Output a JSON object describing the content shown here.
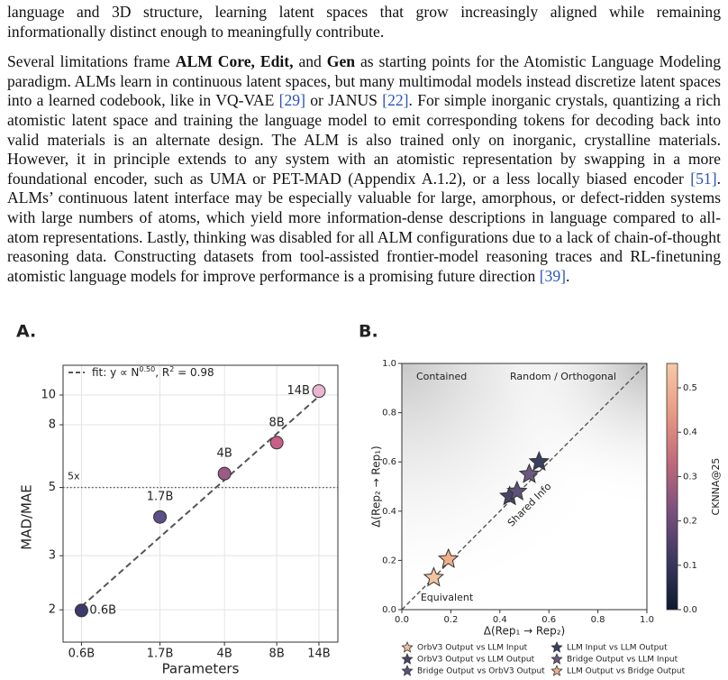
{
  "paragraphs": [
    [
      "language and 3D structure, learning latent spaces that grow increasingly aligned while remaining informationally distinct enough to meaningfully contribute."
    ],
    [
      "Several limitations frame ",
      "ALM Core, Edit,",
      " and ",
      "Gen",
      " as starting points for the Atomistic Language Modeling paradigm. ALMs learn in continuous latent spaces, but many multimodal models instead discretize latent spaces into a learned codebook, like in VQ-VAE ",
      "[29]",
      " or JANUS ",
      "[22]",
      ". For simple inorganic crystals, quantizing a rich atomistic latent space and training the language model to emit corresponding tokens for decoding back into valid materials is an alternate design. The ALM is also trained only on inorganic, crystalline materials. However, it in principle extends to any system with an atomistic representation by swapping in a more foundational encoder, such as UMA or PET-MAD (Appendix A.1.2), or a less locally biased encoder ",
      "[51]",
      ". ALMs’ continuous latent interface may be especially valuable for large, amorphous, or defect-ridden systems with large numbers of atoms, which yield more information-dense descriptions in language compared to all-atom representations. Lastly, thinking was disabled for all ALM configurations due to a lack of chain-of-thought reasoning data. Constructing datasets from tool-assisted frontier-model reasoning traces and RL-finetuning atomistic language models for improve performance is a promising future direction ",
      "[39]",
      "."
    ]
  ],
  "chart_data": [
    {
      "type": "scatter",
      "panel": "A.",
      "xlabel": "Parameters",
      "ylabel": "MAD/MAE",
      "xscale": "log",
      "yscale": "log",
      "xlim": [
        0.47,
        18
      ],
      "ylim": [
        1.57,
        12.5
      ],
      "xticks": [
        {
          "value": 0.6,
          "label": "0.6B"
        },
        {
          "value": 1.7,
          "label": "1.7B"
        },
        {
          "value": 4,
          "label": "4B"
        },
        {
          "value": 8,
          "label": "8B"
        },
        {
          "value": 14,
          "label": "14B"
        }
      ],
      "yticks": [
        2,
        3,
        5,
        8,
        10
      ],
      "grid": true,
      "x": [
        0.6,
        1.7,
        4,
        8,
        14
      ],
      "values": [
        1.99,
        4.01,
        5.55,
        7.0,
        10.3
      ],
      "point_labels": [
        "0.6B",
        "1.7B",
        "4B",
        "8B",
        "14B"
      ],
      "colors": [
        "#3d3a6b",
        "#5b4f86",
        "#9c5a86",
        "#c75f86",
        "#eab6cf"
      ],
      "fit": {
        "label": [
          "fit: y ∝ N",
          "0.50",
          ", R",
          "2",
          " = 0.98"
        ],
        "x": [
          0.6,
          14
        ],
        "values": [
          2.05,
          9.9
        ],
        "color": "#555555"
      },
      "hline": {
        "value": 5,
        "label": "5x"
      }
    },
    {
      "type": "scatter",
      "panel": "B.",
      "xlabel": "Δ(Rep₁ → Rep₂)",
      "ylabel": "Δ(Rep₂ → Rep₁)",
      "xlim": [
        0,
        1
      ],
      "ylim": [
        0,
        1
      ],
      "xticks": [
        {
          "value": 0,
          "label": "0.0"
        },
        0.2,
        0.4,
        0.6,
        0.8,
        {
          "value": 1,
          "label": "1.0"
        }
      ],
      "yticks": [
        {
          "value": 0,
          "label": "0.0"
        },
        0.2,
        0.4,
        0.6,
        0.8,
        {
          "value": 1,
          "label": "1.0"
        }
      ],
      "annotations": [
        "Contained",
        "Random / Orthogonal",
        "Shared Info",
        "Equivalent"
      ],
      "colorbar": {
        "label": "CKNNA@25",
        "lim": [
          0,
          0.555
        ],
        "ticks": [
          {
            "value": 0,
            "label": "0.0"
          },
          0.1,
          0.2,
          0.3,
          0.4,
          0.5
        ],
        "colors": [
          "#0c1a2e",
          "#3b3760",
          "#7b4f7e",
          "#c06a7a",
          "#e89a84",
          "#f7c9a6"
        ]
      },
      "series": [
        {
          "name": "OrbV3 Output vs LLM Input",
          "color": "#f2c2a2",
          "x": [
            0.13
          ],
          "y": [
            0.13
          ]
        },
        {
          "name": "OrbV3 Output vs LLM Output",
          "color": "#4a4468",
          "x": [
            0.44
          ],
          "y": [
            0.46
          ]
        },
        {
          "name": "Bridge Output vs OrbV3 Output",
          "color": "#5e5278",
          "x": [
            0.47
          ],
          "y": [
            0.48
          ]
        },
        {
          "name": "LLM Input vs LLM Output",
          "color": "#3c4060",
          "x": [
            0.56
          ],
          "y": [
            0.6
          ]
        },
        {
          "name": "Bridge Output vs LLM Input",
          "color": "#6a5a80",
          "x": [
            0.52
          ],
          "y": [
            0.55
          ]
        },
        {
          "name": "LLM Output vs Bridge Output",
          "color": "#eeb08c",
          "x": [
            0.19
          ],
          "y": [
            0.205
          ]
        }
      ]
    }
  ]
}
